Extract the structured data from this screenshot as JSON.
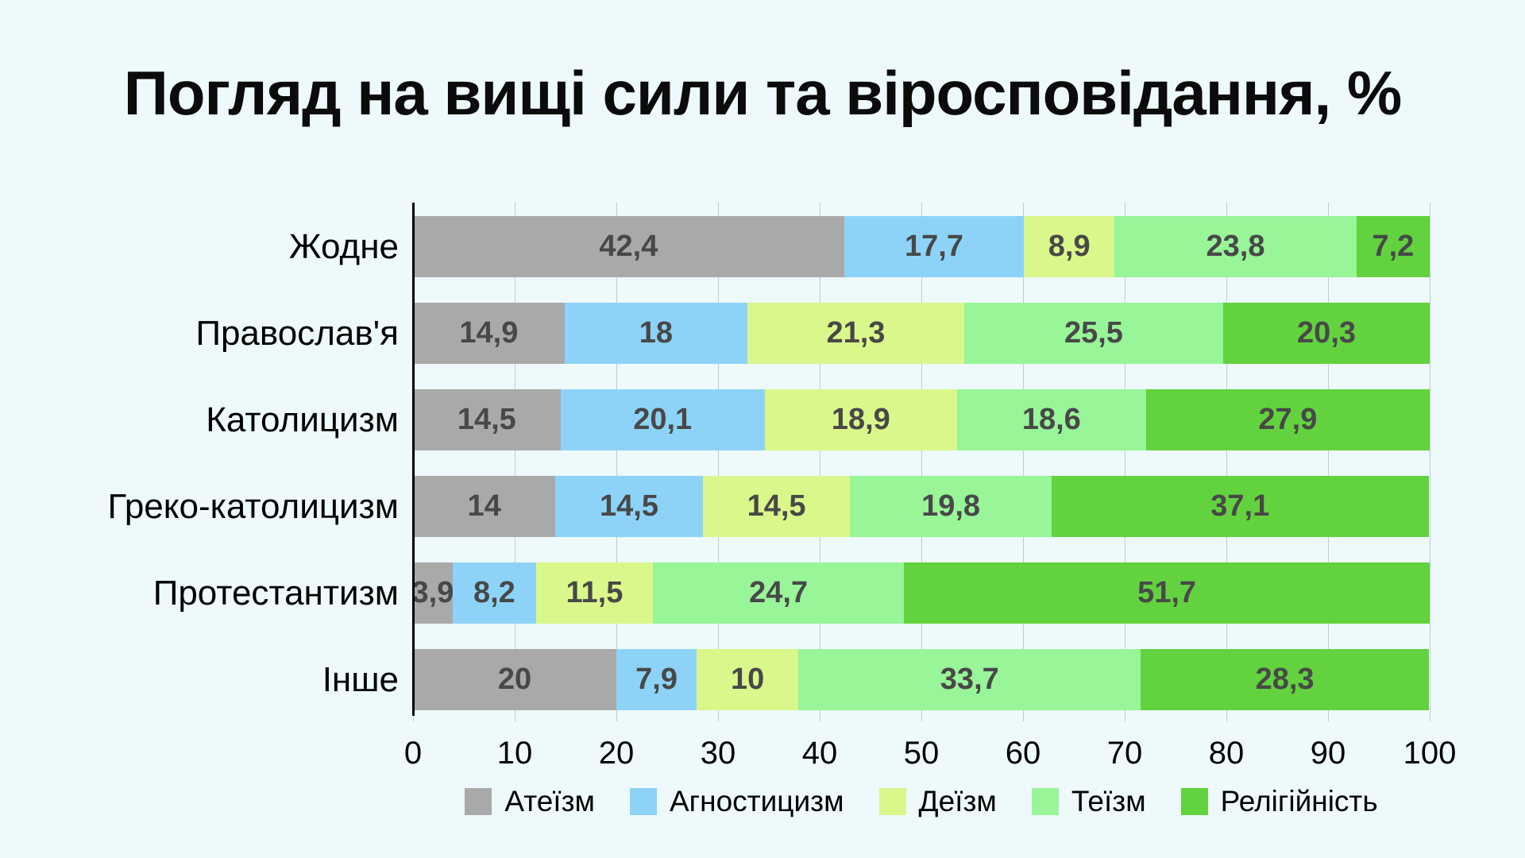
{
  "chart_data": {
    "type": "bar",
    "stacked": true,
    "orientation": "horizontal",
    "title": "Погляд на вищі сили та віросповідання, %",
    "categories": [
      "Жодне",
      "Православ'я",
      "Католицизм",
      "Греко-католицизм",
      "Протестантизм",
      "Інше"
    ],
    "series": [
      {
        "name": "Атеїзм",
        "color": "#a9a9a9",
        "values": [
          42.4,
          14.9,
          14.5,
          14,
          3.9,
          20
        ]
      },
      {
        "name": "Агностицизм",
        "color": "#8dd3f8",
        "values": [
          17.7,
          18,
          20.1,
          14.5,
          8.2,
          7.9
        ]
      },
      {
        "name": "Деїзм",
        "color": "#daf78b",
        "values": [
          8.9,
          21.3,
          18.9,
          14.5,
          11.5,
          10
        ]
      },
      {
        "name": "Теїзм",
        "color": "#98f598",
        "values": [
          23.8,
          25.5,
          18.6,
          19.8,
          24.7,
          33.7
        ]
      },
      {
        "name": "Релігійність",
        "color": "#62d23e",
        "values": [
          7.2,
          20.3,
          27.9,
          37.1,
          51.7,
          28.3
        ]
      }
    ],
    "x_ticks": [
      0,
      10,
      20,
      30,
      40,
      50,
      60,
      70,
      80,
      90,
      100
    ],
    "xlim": [
      0,
      100
    ],
    "decimal_separator": ",",
    "grid": true,
    "legend_position": "bottom",
    "value_label_color": "#484848",
    "background_color": "#edf9fb"
  }
}
